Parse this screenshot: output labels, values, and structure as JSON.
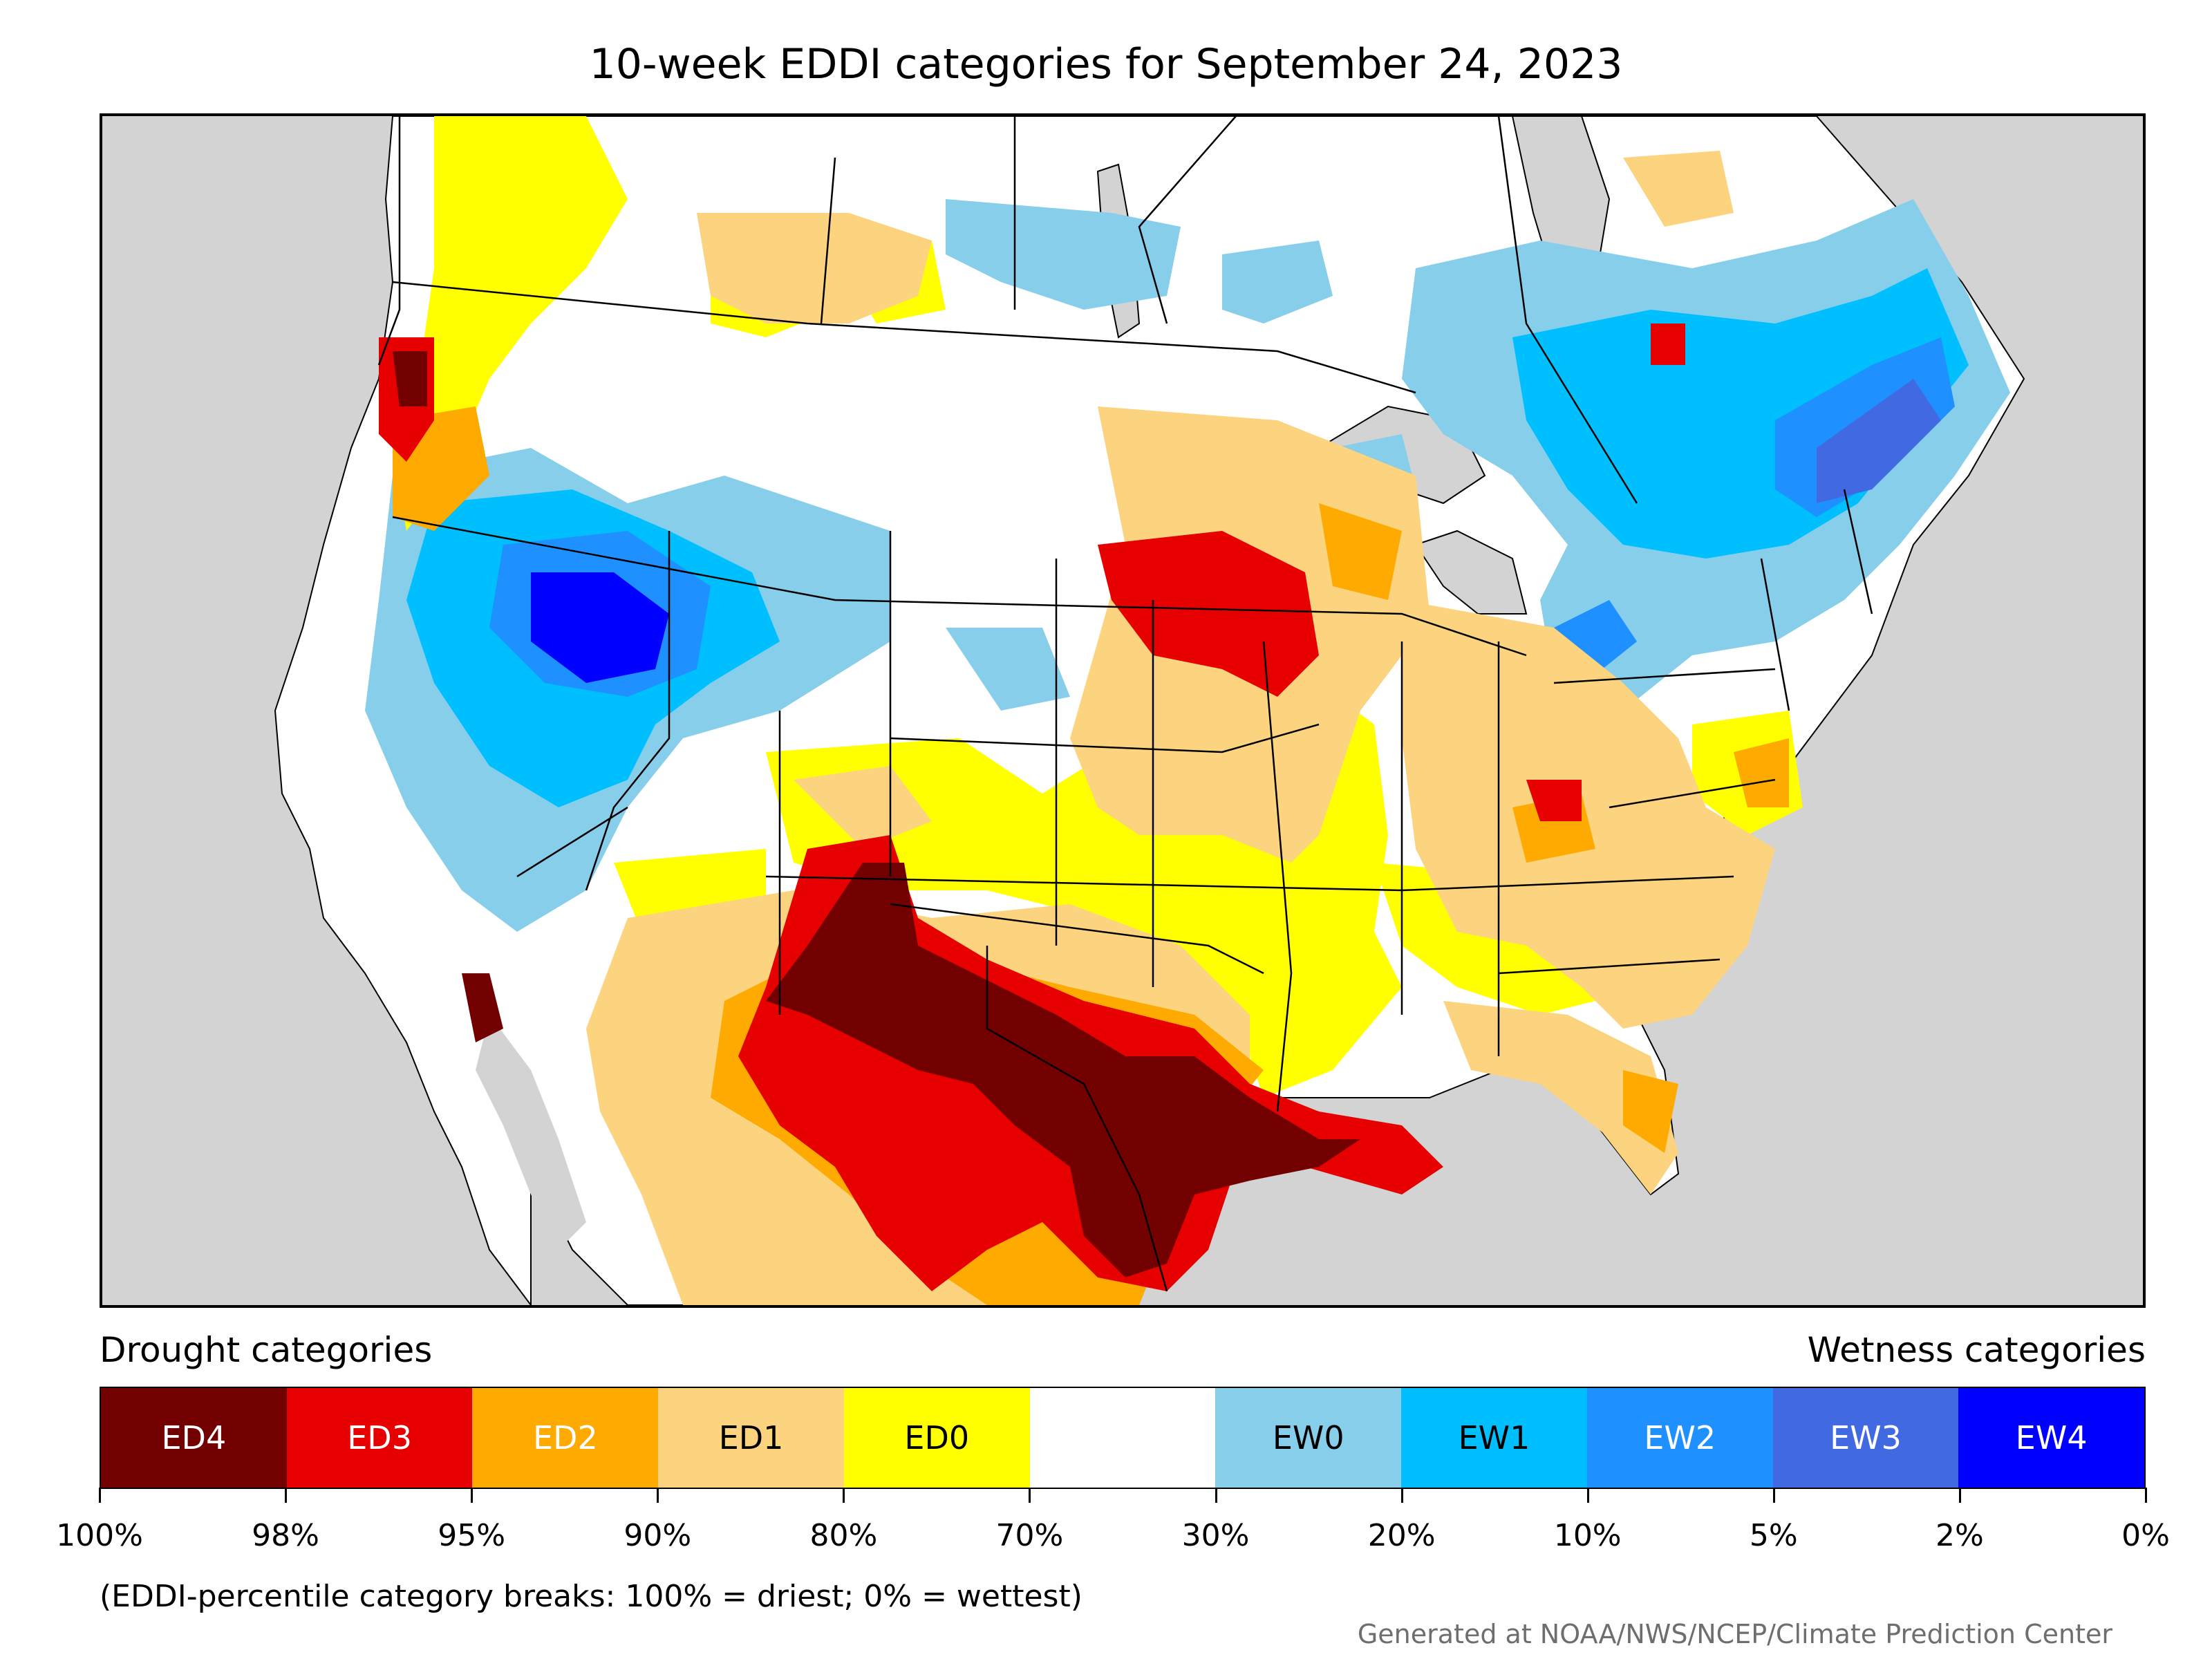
{
  "title": "10-week EDDI categories for September 24, 2023",
  "headings": {
    "drought": "Drought categories",
    "wetness": "Wetness categories"
  },
  "legend": [
    {
      "label": "ED4",
      "color": "#730000",
      "text_color": "#ffffff"
    },
    {
      "label": "ED3",
      "color": "#e60000",
      "text_color": "#ffffff"
    },
    {
      "label": "ED2",
      "color": "#ffaa00",
      "text_color": "#ffffff"
    },
    {
      "label": "ED1",
      "color": "#fcd37f",
      "text_color": "#000000"
    },
    {
      "label": "ED0",
      "color": "#ffff00",
      "text_color": "#000000"
    },
    {
      "label": "",
      "color": "#ffffff",
      "text_color": "#000000"
    },
    {
      "label": "EW0",
      "color": "#87ceeb",
      "text_color": "#000000"
    },
    {
      "label": "EW1",
      "color": "#00bfff",
      "text_color": "#000000"
    },
    {
      "label": "EW2",
      "color": "#1e90ff",
      "text_color": "#ffffff"
    },
    {
      "label": "EW3",
      "color": "#4169e1",
      "text_color": "#ffffff"
    },
    {
      "label": "EW4",
      "color": "#0000ff",
      "text_color": "#ffffff"
    }
  ],
  "percentile_breaks": [
    "100%",
    "98%",
    "95%",
    "90%",
    "80%",
    "70%",
    "30%",
    "20%",
    "10%",
    "5%",
    "2%",
    "0%"
  ],
  "footnote": "(EDDI-percentile category breaks: 100% = driest; 0% = wettest)",
  "credit": "Generated at NOAA/NWS/NCEP/Climate Prediction Center",
  "colors": {
    "background_land": "#d3d3d3",
    "water": "#d3d3d3",
    "map_border": "#000000"
  }
}
